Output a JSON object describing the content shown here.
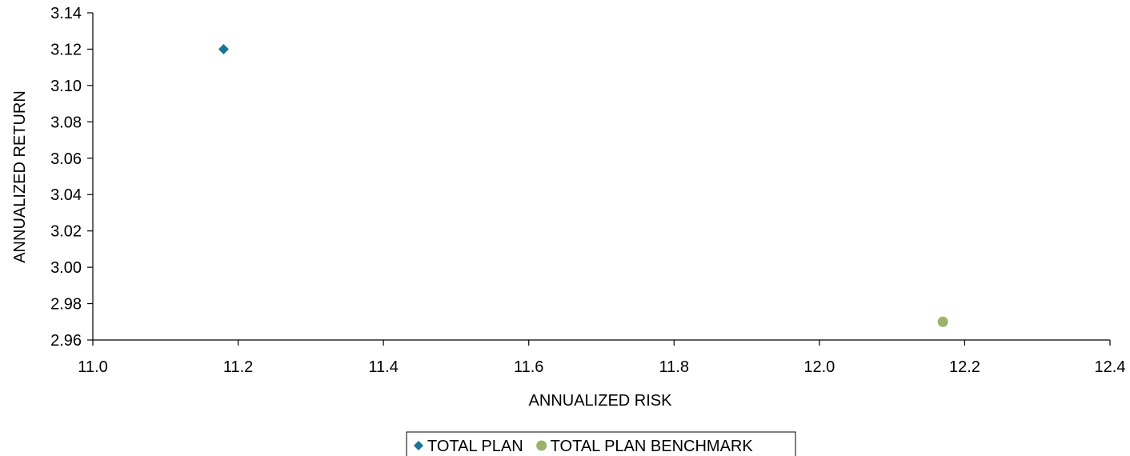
{
  "chart_data": {
    "type": "scatter",
    "title": "",
    "xlabel": "ANNUALIZED RISK",
    "ylabel": "ANNUALIZED RETURN",
    "xlim": [
      11.0,
      12.4
    ],
    "ylim": [
      2.96,
      3.14
    ],
    "x_ticks": [
      "11.0",
      "11.2",
      "11.4",
      "11.6",
      "11.8",
      "12.0",
      "12.2",
      "12.4"
    ],
    "y_ticks": [
      "3.14",
      "3.12",
      "3.10",
      "3.08",
      "3.06",
      "3.04",
      "3.02",
      "3.00",
      "2.98",
      "2.96"
    ],
    "grid": false,
    "legend_position": "bottom",
    "series": [
      {
        "name": "TOTAL PLAN",
        "marker": "diamond",
        "color": "#17759A",
        "points": [
          {
            "x": 11.18,
            "y": 3.12
          }
        ]
      },
      {
        "name": "TOTAL PLAN BENCHMARK",
        "marker": "circle",
        "color": "#9CB16A",
        "points": [
          {
            "x": 12.17,
            "y": 2.97
          }
        ]
      }
    ]
  }
}
